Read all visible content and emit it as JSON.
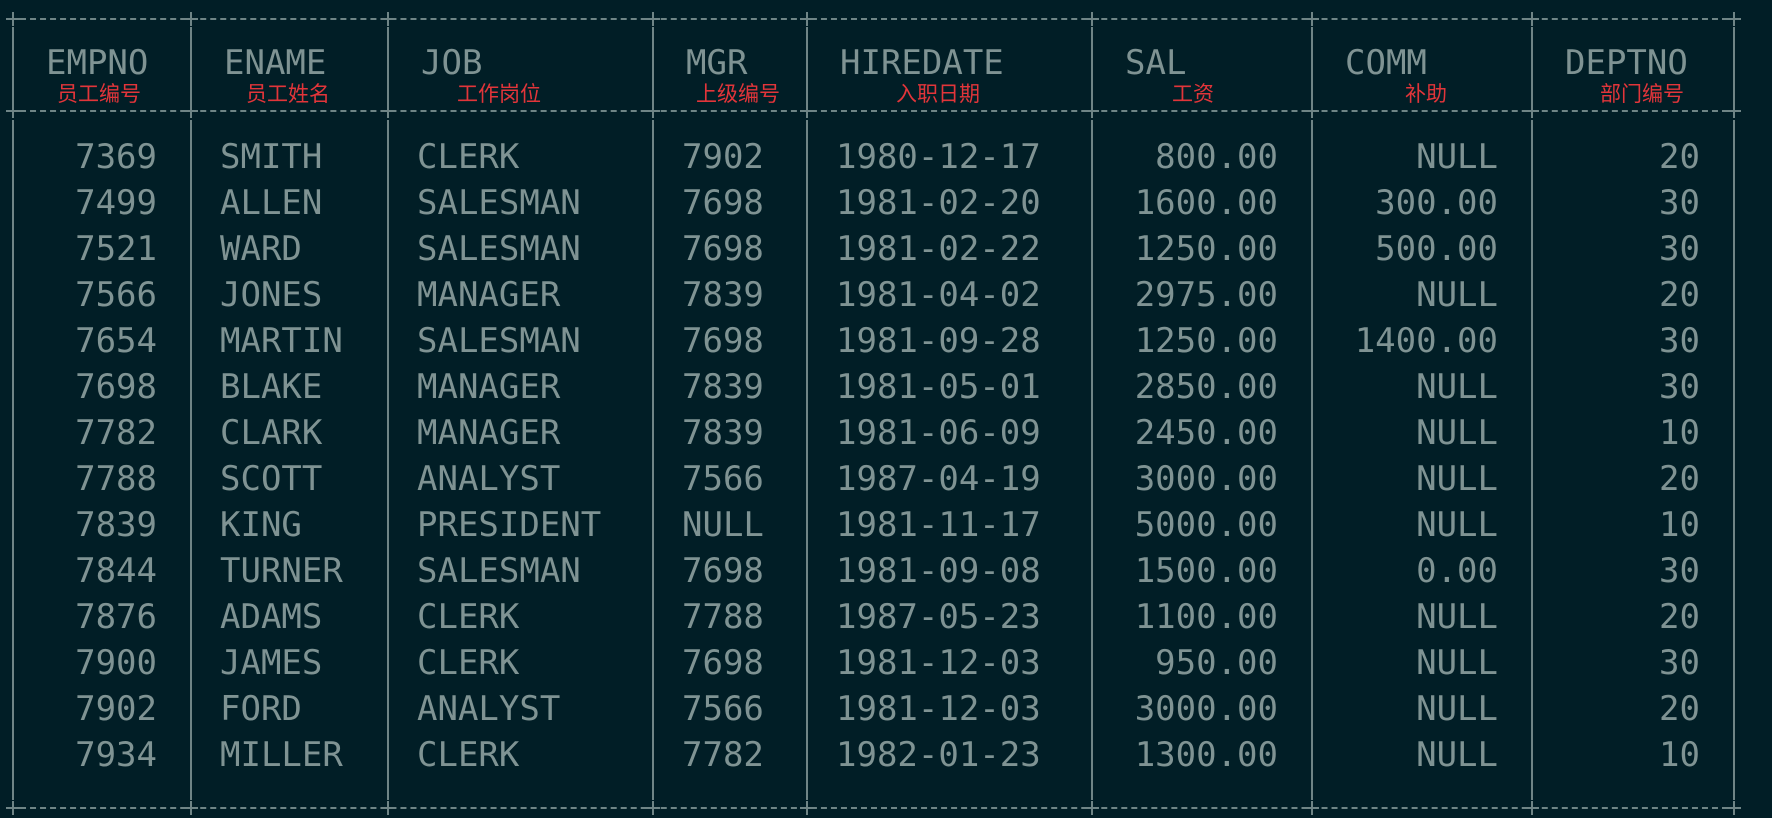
{
  "table": {
    "columns": [
      {
        "name": "EMPNO",
        "zh": "员工编号"
      },
      {
        "name": "ENAME",
        "zh": "员工姓名"
      },
      {
        "name": "JOB",
        "zh": "工作岗位"
      },
      {
        "name": "MGR",
        "zh": "上级编号"
      },
      {
        "name": "HIREDATE",
        "zh": "入职日期"
      },
      {
        "name": "SAL",
        "zh": "工资"
      },
      {
        "name": "COMM",
        "zh": "补助"
      },
      {
        "name": "DEPTNO",
        "zh": "部门编号"
      }
    ],
    "rows": [
      [
        "7369",
        "SMITH",
        "CLERK",
        "7902",
        "1980-12-17",
        "800.00",
        "NULL",
        "20"
      ],
      [
        "7499",
        "ALLEN",
        "SALESMAN",
        "7698",
        "1981-02-20",
        "1600.00",
        "300.00",
        "30"
      ],
      [
        "7521",
        "WARD",
        "SALESMAN",
        "7698",
        "1981-02-22",
        "1250.00",
        "500.00",
        "30"
      ],
      [
        "7566",
        "JONES",
        "MANAGER",
        "7839",
        "1981-04-02",
        "2975.00",
        "NULL",
        "20"
      ],
      [
        "7654",
        "MARTIN",
        "SALESMAN",
        "7698",
        "1981-09-28",
        "1250.00",
        "1400.00",
        "30"
      ],
      [
        "7698",
        "BLAKE",
        "MANAGER",
        "7839",
        "1981-05-01",
        "2850.00",
        "NULL",
        "30"
      ],
      [
        "7782",
        "CLARK",
        "MANAGER",
        "7839",
        "1981-06-09",
        "2450.00",
        "NULL",
        "10"
      ],
      [
        "7788",
        "SCOTT",
        "ANALYST",
        "7566",
        "1987-04-19",
        "3000.00",
        "NULL",
        "20"
      ],
      [
        "7839",
        "KING",
        "PRESIDENT",
        "NULL",
        "1981-11-17",
        "5000.00",
        "NULL",
        "10"
      ],
      [
        "7844",
        "TURNER",
        "SALESMAN",
        "7698",
        "1981-09-08",
        "1500.00",
        "0.00",
        "30"
      ],
      [
        "7876",
        "ADAMS",
        "CLERK",
        "7788",
        "1987-05-23",
        "1100.00",
        "NULL",
        "20"
      ],
      [
        "7900",
        "JAMES",
        "CLERK",
        "7698",
        "1981-12-03",
        "950.00",
        "NULL",
        "30"
      ],
      [
        "7902",
        "FORD",
        "ANALYST",
        "7566",
        "1981-12-03",
        "3000.00",
        "NULL",
        "20"
      ],
      [
        "7934",
        "MILLER",
        "CLERK",
        "7782",
        "1982-01-23",
        "1300.00",
        "NULL",
        "10"
      ]
    ]
  },
  "colors": {
    "background": "#011e26",
    "text": "#7f9393",
    "border": "#6f8586",
    "annotation": "#e2353a"
  }
}
